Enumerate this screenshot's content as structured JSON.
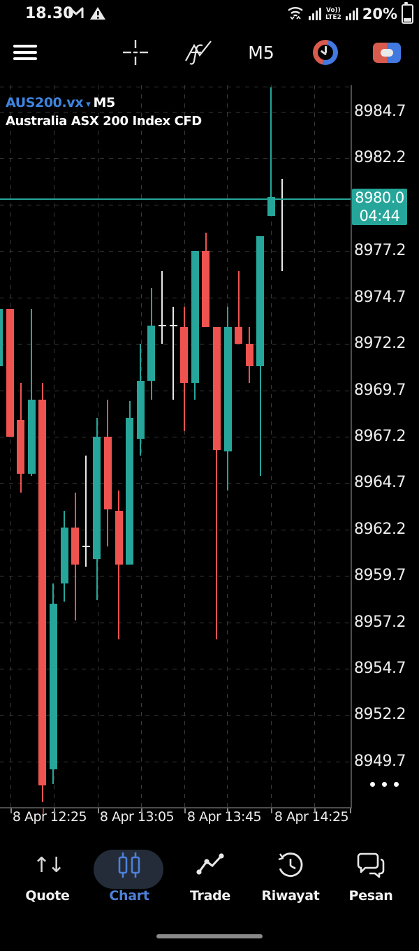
{
  "status_bar": {
    "time": "18.30",
    "network_top": "Vo))",
    "network_bottom": "LTE2",
    "battery_percent": "20%",
    "icons": [
      "gmail-icon",
      "warning-icon",
      "wifi-icon",
      "signal-bars",
      "signal-bars-2",
      "battery-icon"
    ]
  },
  "toolbar": {
    "timeframe": "M5"
  },
  "chart": {
    "symbol": "AUS200.vx",
    "symbol_timeframe": "M5",
    "description": "Australia ASX 200 Index CFD",
    "price_badge": {
      "price": "8980.0",
      "time": "04:44"
    },
    "colors": {
      "up": "#26a69a",
      "down": "#ef5350",
      "doji": "#e8e8e8",
      "price_line": "#26a69a",
      "badge_bg": "#26a69a",
      "symbol_blue": "#3d85e0"
    }
  },
  "chart_data": {
    "type": "candlestick",
    "title": "AUS200.vx M5 — Australia ASX 200 Index CFD",
    "timeframe_minutes": 5,
    "date": "8 Apr",
    "ylim": [
      8947.25,
      8986.13
    ],
    "current_price": 8980.0,
    "y_ticks": [
      {
        "v": 8984.7,
        "label": "8984.7"
      },
      {
        "v": 8982.2,
        "label": "8982.2"
      },
      {
        "v": 8979.7,
        "label": ""
      },
      {
        "v": 8977.2,
        "label": "8977.2"
      },
      {
        "v": 8974.7,
        "label": "8974.7"
      },
      {
        "v": 8972.2,
        "label": "8972.2"
      },
      {
        "v": 8969.7,
        "label": "8969.7"
      },
      {
        "v": 8967.2,
        "label": "8967.2"
      },
      {
        "v": 8964.7,
        "label": "8964.7"
      },
      {
        "v": 8962.2,
        "label": "8962.2"
      },
      {
        "v": 8959.7,
        "label": "8959.7"
      },
      {
        "v": 8957.2,
        "label": "8957.2"
      },
      {
        "v": 8954.7,
        "label": "8954.7"
      },
      {
        "v": 8952.2,
        "label": "8952.2"
      },
      {
        "v": 8949.7,
        "label": "8949.7"
      }
    ],
    "x_labels": [
      {
        "text": "8 Apr 12:25",
        "x": 71
      },
      {
        "text": "8 Apr 13:05",
        "x": 196
      },
      {
        "text": "8 Apr 13:45",
        "x": 321
      },
      {
        "text": "8 Apr 14:25",
        "x": 446
      }
    ],
    "candles": [
      {
        "t": "12:00",
        "dir": "up",
        "o": 8971.0,
        "h": 8974.1,
        "l": 8971.0,
        "c": 8974.1
      },
      {
        "t": "12:05",
        "dir": "down",
        "o": 8974.1,
        "h": 8974.1,
        "l": 8967.2,
        "c": 8967.2
      },
      {
        "t": "12:10",
        "dir": "down",
        "o": 8968.1,
        "h": 8970.1,
        "l": 8964.2,
        "c": 8965.2
      },
      {
        "t": "12:15",
        "dir": "up",
        "o": 8965.2,
        "h": 8974.1,
        "l": 8965.1,
        "c": 8969.2
      },
      {
        "t": "12:20",
        "dir": "down",
        "o": 8969.2,
        "h": 8970.1,
        "l": 8947.5,
        "c": 8948.4
      },
      {
        "t": "12:25",
        "dir": "up",
        "o": 8949.3,
        "h": 8959.3,
        "l": 8948.5,
        "c": 8958.2
      },
      {
        "t": "12:30",
        "dir": "up",
        "o": 8959.3,
        "h": 8963.2,
        "l": 8958.3,
        "c": 8962.3
      },
      {
        "t": "12:35",
        "dir": "down",
        "o": 8962.3,
        "h": 8964.2,
        "l": 8957.3,
        "c": 8960.3
      },
      {
        "t": "12:40",
        "dir": "doji",
        "o": 8961.3,
        "h": 8966.2,
        "l": 8960.2,
        "c": 8961.3
      },
      {
        "t": "12:45",
        "dir": "up",
        "o": 8960.6,
        "h": 8968.2,
        "l": 8958.4,
        "c": 8967.2
      },
      {
        "t": "12:50",
        "dir": "down",
        "o": 8967.2,
        "h": 8969.2,
        "l": 8961.3,
        "c": 8963.3
      },
      {
        "t": "12:55",
        "dir": "down",
        "o": 8963.2,
        "h": 8964.3,
        "l": 8956.3,
        "c": 8960.3
      },
      {
        "t": "13:00",
        "dir": "up",
        "o": 8960.3,
        "h": 8969.1,
        "l": 8960.3,
        "c": 8968.2
      },
      {
        "t": "13:05",
        "dir": "up",
        "o": 8967.1,
        "h": 8972.2,
        "l": 8966.2,
        "c": 8970.2
      },
      {
        "t": "13:10",
        "dir": "up",
        "o": 8970.2,
        "h": 8975.2,
        "l": 8969.2,
        "c": 8973.2
      },
      {
        "t": "13:15",
        "dir": "doji",
        "o": 8973.2,
        "h": 8976.1,
        "l": 8972.2,
        "c": 8973.2
      },
      {
        "t": "13:20",
        "dir": "doji",
        "o": 8973.2,
        "h": 8974.2,
        "l": 8969.2,
        "c": 8973.2
      },
      {
        "t": "13:25",
        "dir": "down",
        "o": 8973.1,
        "h": 8974.2,
        "l": 8967.5,
        "c": 8970.1
      },
      {
        "t": "13:30",
        "dir": "up",
        "o": 8970.1,
        "h": 8977.2,
        "l": 8969.2,
        "c": 8977.2
      },
      {
        "t": "13:35",
        "dir": "down",
        "o": 8977.2,
        "h": 8978.2,
        "l": 8973.1,
        "c": 8973.1
      },
      {
        "t": "13:40",
        "dir": "down",
        "o": 8973.1,
        "h": 8973.1,
        "l": 8956.3,
        "c": 8966.5
      },
      {
        "t": "13:45",
        "dir": "up",
        "o": 8966.4,
        "h": 8974.2,
        "l": 8964.3,
        "c": 8973.1
      },
      {
        "t": "13:50",
        "dir": "down",
        "o": 8973.1,
        "h": 8976.1,
        "l": 8972.2,
        "c": 8972.2
      },
      {
        "t": "13:55",
        "dir": "down",
        "o": 8972.2,
        "h": 8973.1,
        "l": 8970.1,
        "c": 8971.0
      },
      {
        "t": "14:00",
        "dir": "up",
        "o": 8971.0,
        "h": 8978.0,
        "l": 8965.1,
        "c": 8978.0
      },
      {
        "t": "14:05",
        "dir": "up",
        "o": 8979.1,
        "h": 8986.0,
        "l": 8979.1,
        "c": 8980.1
      },
      {
        "t": "14:10",
        "dir": "doji",
        "o": 8979.9,
        "h": 8981.1,
        "l": 8976.1,
        "c": 8980.0
      }
    ]
  },
  "bottom_nav": {
    "items": [
      {
        "label": "Quote"
      },
      {
        "label": "Chart"
      },
      {
        "label": "Trade"
      },
      {
        "label": "Riwayat"
      },
      {
        "label": "Pesan"
      }
    ],
    "active": "Chart"
  }
}
